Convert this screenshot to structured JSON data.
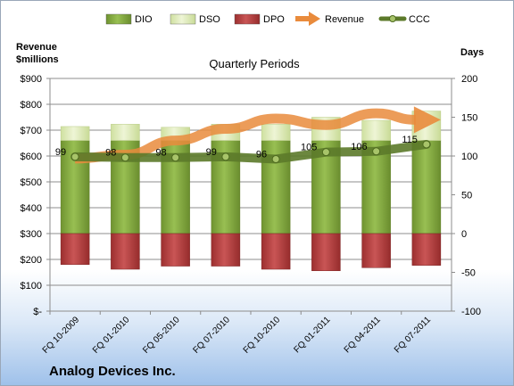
{
  "company": "Analog Devices Inc.",
  "chart_data": {
    "type": "bar",
    "title": "Quarterly Periods",
    "ylabel_left": "Revenue\n$millions",
    "ylabel_right": "Days",
    "ylim_left": [
      0,
      900
    ],
    "yticks_left": [
      "$-",
      "$100",
      "$200",
      "$300",
      "$400",
      "$500",
      "$600",
      "$700",
      "$800",
      "$900"
    ],
    "ylim_right": [
      -100,
      200
    ],
    "yticks_right": [
      "-100",
      "-50",
      "0",
      "50",
      "100",
      "150",
      "200"
    ],
    "grid": true,
    "legend_position": "top",
    "categories": [
      "FQ 10-2009",
      "FQ 01-2010",
      "FQ 05-2010",
      "FQ 07-2010",
      "FQ 10-2010",
      "FQ 01-2011",
      "FQ 04-2011",
      "FQ 07-2011"
    ],
    "series": [
      {
        "name": "DIO",
        "axis": "right",
        "color": "#7ea23b",
        "values": [
          120,
          120,
          120,
          120,
          120,
          120,
          120,
          120
        ]
      },
      {
        "name": "DSO",
        "axis": "right",
        "color": "#d6e6a9",
        "values": [
          18,
          21,
          17,
          21,
          21,
          30,
          26,
          38
        ]
      },
      {
        "name": "DPO",
        "axis": "right",
        "color": "#b03a3a",
        "values": [
          -40,
          -46,
          -42,
          -42,
          -46,
          -48,
          -44,
          -41
        ]
      },
      {
        "name": "Revenue",
        "axis": "left",
        "color": "#e98b3c",
        "values": [
          590,
          605,
          660,
          705,
          745,
          720,
          765,
          740
        ]
      },
      {
        "name": "CCC",
        "axis": "right",
        "color": "#5c7a2a",
        "values": [
          99,
          98,
          98,
          99,
          96,
          105,
          106,
          115
        ]
      }
    ],
    "data_labels": [
      "99",
      "98",
      "98",
      "99",
      "96",
      "105",
      "106",
      "115"
    ]
  }
}
